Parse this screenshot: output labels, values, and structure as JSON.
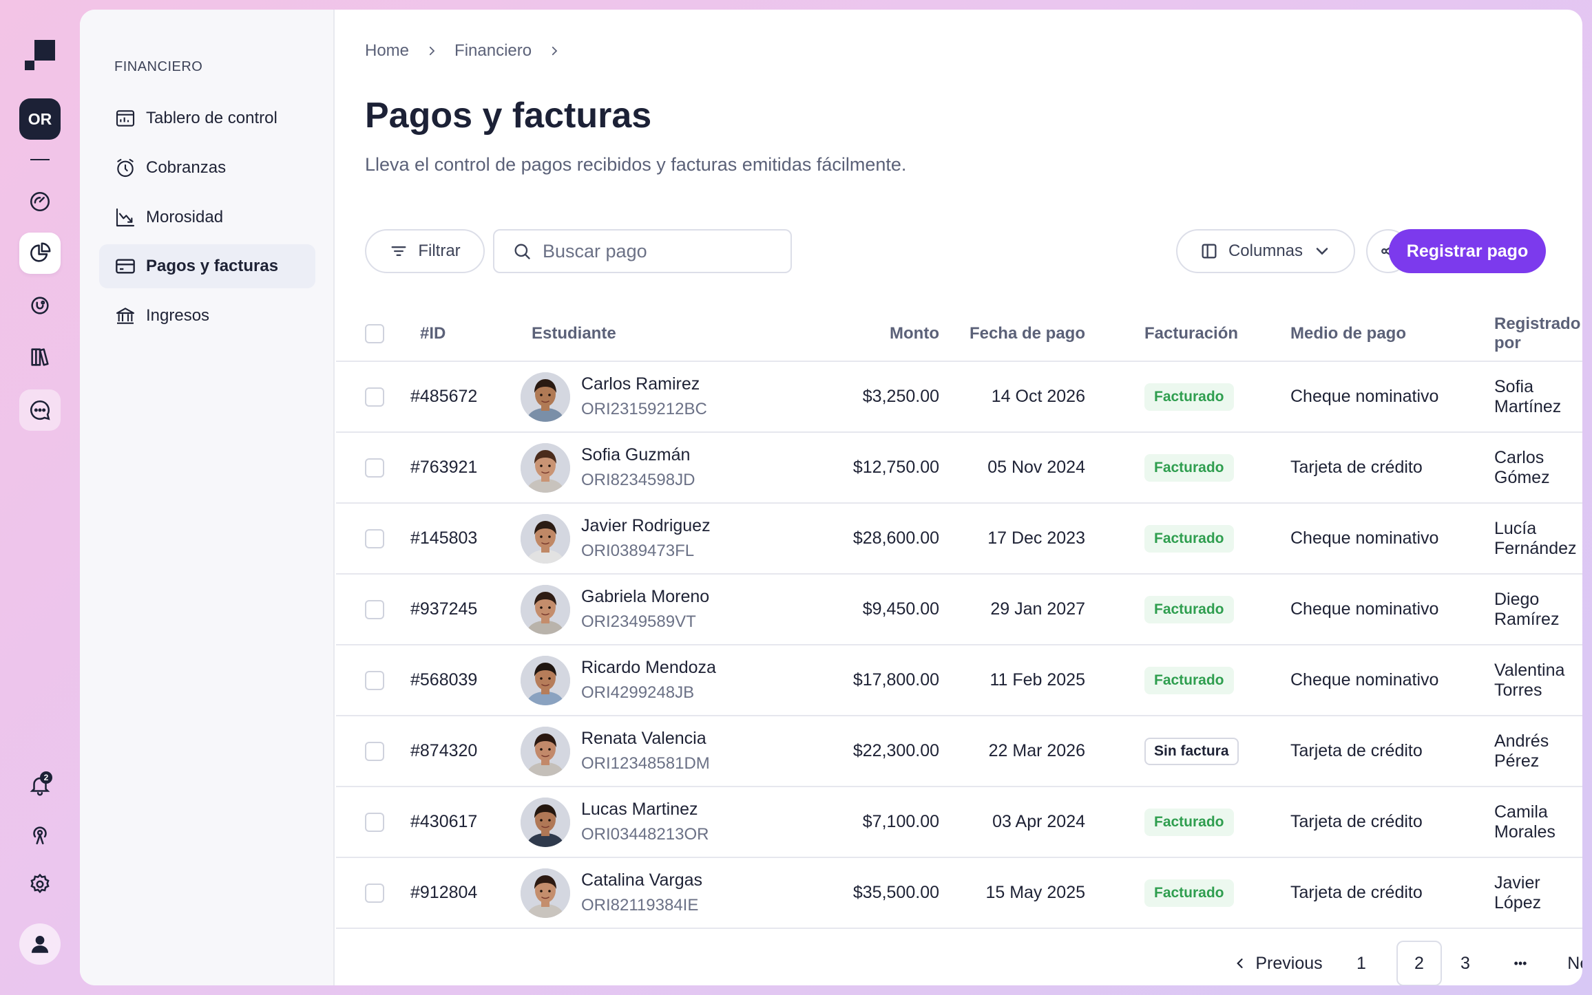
{
  "rail": {
    "org_initials": "OR",
    "notification_count": "2"
  },
  "sidebar": {
    "section": "FINANCIERO",
    "items": [
      {
        "label": "Tablero de control",
        "icon": "dashboard-icon"
      },
      {
        "label": "Cobranzas",
        "icon": "timer-icon"
      },
      {
        "label": "Morosidad",
        "icon": "trend-down-icon"
      },
      {
        "label": "Pagos y facturas",
        "icon": "card-icon",
        "active": true
      },
      {
        "label": "Ingresos",
        "icon": "bank-icon"
      }
    ]
  },
  "breadcrumb": [
    "Home",
    "Financiero"
  ],
  "page": {
    "title": "Pagos y facturas",
    "subtitle": "Lleva el control de pagos recibidos y facturas emitidas fácilmente."
  },
  "toolbar": {
    "filter_label": "Filtrar",
    "search_placeholder": "Buscar pago",
    "columns_label": "Columnas",
    "primary_label": "Registrar pago"
  },
  "table": {
    "headers": {
      "id": "#ID",
      "student": "Estudiante",
      "amount": "Monto",
      "date": "Fecha de pago",
      "billing": "Facturación",
      "method": "Medio de pago",
      "registered_by": "Registrado por"
    },
    "rows": [
      {
        "id": "#485672",
        "name": "Carlos Ramirez",
        "code": "ORI23159212BC",
        "amount": "$3,250.00",
        "date": "14 Oct 2026",
        "billing": "Facturado",
        "method": "Cheque nominativo",
        "by": "Sofia Martínez",
        "billed": true,
        "skin": "#b07a55",
        "hair": "#2a1a12",
        "shirt": "#7a8fa8"
      },
      {
        "id": "#763921",
        "name": "Sofia Guzmán",
        "code": "ORI8234598JD",
        "amount": "$12,750.00",
        "date": "05 Nov 2024",
        "billing": "Facturado",
        "method": "Tarjeta de crédito",
        "by": "Carlos Gómez",
        "billed": true,
        "skin": "#c99474",
        "hair": "#4a2c1c",
        "shirt": "#c8c3bd"
      },
      {
        "id": "#145803",
        "name": "Javier Rodriguez",
        "code": "ORI0389473FL",
        "amount": "$28,600.00",
        "date": "17 Dec 2023",
        "billing": "Facturado",
        "method": "Cheque nominativo",
        "by": "Lucía Fernández",
        "billed": true,
        "skin": "#c08866",
        "hair": "#2b1c14",
        "shirt": "#e2e2e2"
      },
      {
        "id": "#937245",
        "name": "Gabriela Moreno",
        "code": "ORI2349589VT",
        "amount": "$9,450.00",
        "date": "29 Jan 2027",
        "billing": "Facturado",
        "method": "Cheque nominativo",
        "by": "Diego Ramírez",
        "billed": true,
        "skin": "#c48d6c",
        "hair": "#2e1c14",
        "shirt": "#b9b3ab"
      },
      {
        "id": "#568039",
        "name": "Ricardo Mendoza",
        "code": "ORI4299248JB",
        "amount": "$17,800.00",
        "date": "11 Feb 2025",
        "billing": "Facturado",
        "method": "Cheque nominativo",
        "by": "Valentina Torres",
        "billed": true,
        "skin": "#b67d5a",
        "hair": "#1f1510",
        "shirt": "#8aa2c0"
      },
      {
        "id": "#874320",
        "name": "Renata Valencia",
        "code": "ORI12348581DM",
        "amount": "$22,300.00",
        "date": "22 Mar 2026",
        "billing": "Sin factura",
        "method": "Tarjeta de crédito",
        "by": "Andrés Pérez",
        "billed": false,
        "skin": "#c2896a",
        "hair": "#2a1810",
        "shirt": "#c4bfb9"
      },
      {
        "id": "#430617",
        "name": "Lucas Martinez",
        "code": "ORI03448213OR",
        "amount": "$7,100.00",
        "date": "03 Apr 2024",
        "billing": "Facturado",
        "method": "Tarjeta de crédito",
        "by": "Camila Morales",
        "billed": true,
        "skin": "#b07856",
        "hair": "#24170f",
        "shirt": "#2f3a4c"
      },
      {
        "id": "#912804",
        "name": "Catalina Vargas",
        "code": "ORI82119384IE",
        "amount": "$35,500.00",
        "date": "15 May 2025",
        "billing": "Facturado",
        "method": "Tarjeta de crédito",
        "by": "Javier López",
        "billed": true,
        "skin": "#c48e6d",
        "hair": "#2c1a12",
        "shirt": "#c9c4be"
      }
    ]
  },
  "pagination": {
    "previous": "Previous",
    "pages": [
      "1",
      "2",
      "3"
    ],
    "current": "2",
    "ellipsis": "•••",
    "next": "Next"
  },
  "colors": {
    "accent": "#7c3aed",
    "billed_text": "#2f9e4f",
    "billed_bg": "#ecf8ef",
    "dark": "#1c2136"
  }
}
